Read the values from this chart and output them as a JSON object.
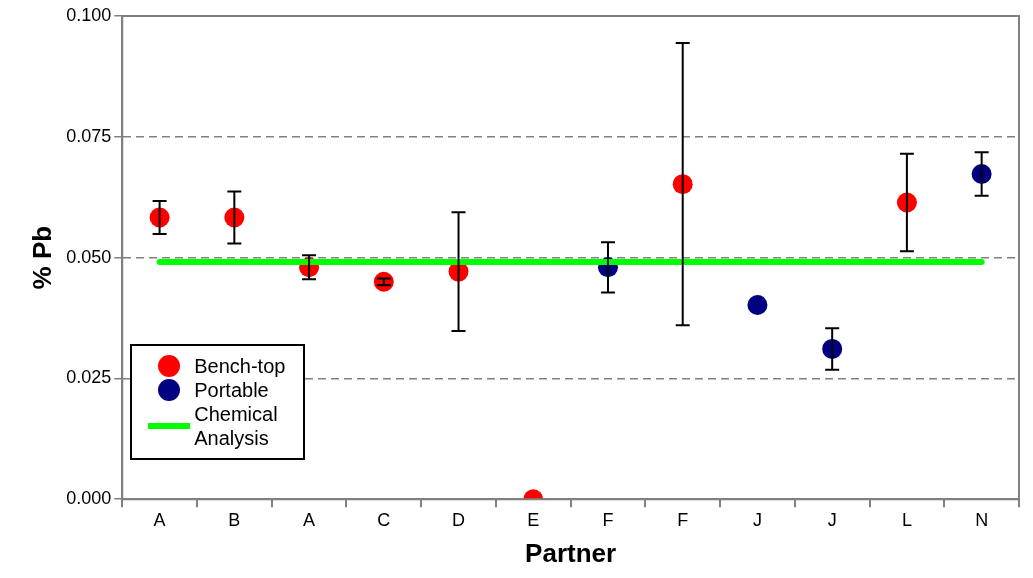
{
  "chart_data": {
    "type": "scatter",
    "xlabel": "Partner",
    "ylabel": "% Pb",
    "categories": [
      "A",
      "B",
      "A",
      "C",
      "D",
      "E",
      "F",
      "F",
      "J",
      "J",
      "L",
      "N"
    ],
    "series": [
      {
        "name": "Bench-top",
        "color": "#ff0000",
        "values": [
          0.0583,
          0.0583,
          0.048,
          0.045,
          0.0471,
          0,
          null,
          0.0652,
          null,
          null,
          0.0614,
          null
        ],
        "errors": [
          0.0034,
          0.0054,
          0.0025,
          0.0007,
          0.0123,
          null,
          null,
          0.0292,
          null,
          null,
          0.0101,
          null
        ]
      },
      {
        "name": "Portable",
        "color": "#000080",
        "values": [
          null,
          null,
          null,
          null,
          null,
          null,
          0.048,
          null,
          0.0402,
          0.0311,
          null,
          0.0673
        ],
        "errors": [
          null,
          null,
          null,
          null,
          null,
          null,
          0.0052,
          null,
          null,
          0.0043,
          null,
          0.0045
        ]
      },
      {
        "name": "Chemical Analysis",
        "type": "line",
        "marker": "none",
        "color": "#00ff00",
        "values": [
          0.0491,
          0.0491,
          0.0491,
          0.0491,
          0.0491,
          0.0491,
          0.0491,
          0.0491,
          0.0491,
          0.0491,
          0.0491,
          0.0491
        ]
      }
    ],
    "ylim": [
      0,
      0.1
    ],
    "yticks": [
      {
        "value": 0,
        "label": "0.000"
      },
      {
        "value": 0.025,
        "label": "0.025"
      },
      {
        "value": 0.05,
        "label": "0.050"
      },
      {
        "value": 0.075,
        "label": "0.075"
      },
      {
        "value": 0.1,
        "label": "0.100"
      }
    ],
    "grid": "y",
    "legend": "bottom left",
    "marker": "circle",
    "line_style": "solid"
  }
}
